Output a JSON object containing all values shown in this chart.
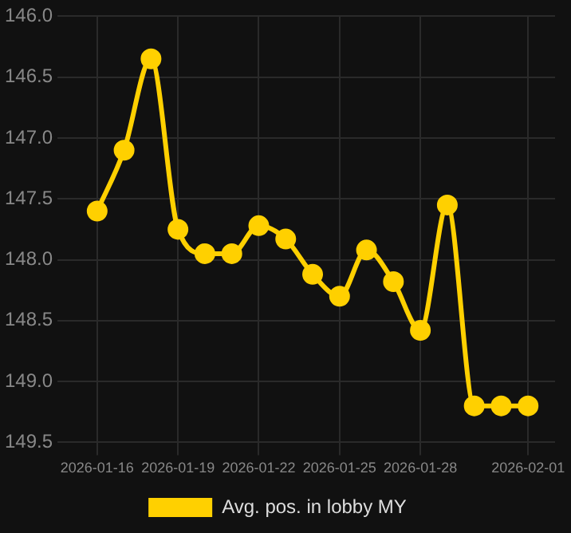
{
  "chart_data": {
    "type": "line",
    "x": [
      "2026-01-16",
      "2026-01-17",
      "2026-01-18",
      "2026-01-19",
      "2026-01-20",
      "2026-01-21",
      "2026-01-22",
      "2026-01-23",
      "2026-01-24",
      "2026-01-25",
      "2026-01-26",
      "2026-01-27",
      "2026-01-28",
      "2026-01-29",
      "2026-01-30",
      "2026-01-31",
      "2026-02-01"
    ],
    "series": [
      {
        "name": "Avg. pos. in lobby MY",
        "color": "#ffd000",
        "values": [
          147.6,
          147.1,
          146.35,
          147.75,
          147.95,
          147.95,
          147.72,
          147.83,
          148.12,
          148.3,
          147.92,
          148.18,
          148.58,
          147.55,
          149.2,
          149.2,
          149.2
        ]
      }
    ],
    "ylim": [
      149.5,
      146.0
    ],
    "yticks": [
      {
        "value": 146.0,
        "label": "146.0"
      },
      {
        "value": 146.5,
        "label": "146.5"
      },
      {
        "value": 147.0,
        "label": "147.0"
      },
      {
        "value": 147.5,
        "label": "147.5"
      },
      {
        "value": 148.0,
        "label": "148.0"
      },
      {
        "value": 148.5,
        "label": "148.5"
      },
      {
        "value": 149.0,
        "label": "149.0"
      },
      {
        "value": 149.5,
        "label": "149.5"
      }
    ],
    "xlim": [
      "2026-01-15",
      "2026-02-02"
    ],
    "xticks": [
      "2026-01-16",
      "2026-01-19",
      "2026-01-22",
      "2026-01-25",
      "2026-01-28",
      "2026-02-01"
    ],
    "grid": true,
    "legend": "bottom",
    "marker": "circle",
    "line_style": "solid"
  }
}
